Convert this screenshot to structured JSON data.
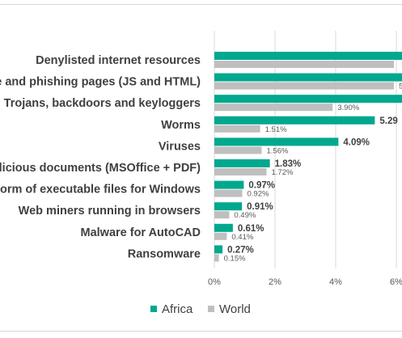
{
  "chart_data": {
    "type": "bar",
    "orientation": "horizontal",
    "categories": [
      "Denylisted internet resources",
      "Malware and phishing pages (JS and HTML)",
      "Trojans, backdoors and keyloggers",
      "Worms",
      "Viruses",
      "Malicious documents (MSOffice + PDF)",
      "Malware in the form of executable files for Windows",
      "Web miners running in browsers",
      "Malware for AutoCAD",
      "Ransomware"
    ],
    "series": [
      {
        "name": "Africa",
        "color": "#00a88e",
        "values": [
          null,
          null,
          null,
          5.29,
          4.09,
          1.83,
          0.97,
          0.91,
          0.61,
          0.27
        ],
        "labels": [
          "",
          "",
          "",
          "5.29",
          "4.09%",
          "1.83%",
          "0.97%",
          "0.91%",
          "0.61%",
          "0.27%"
        ]
      },
      {
        "name": "World",
        "color": "#bfbfbf",
        "values": [
          null,
          null,
          3.9,
          1.51,
          1.56,
          1.72,
          0.92,
          0.49,
          0.41,
          0.15
        ],
        "labels": [
          "",
          "5",
          "3.90%",
          "1.51%",
          "1.56%",
          "1.72%",
          "0.92%",
          "0.49%",
          "0.41%",
          "0.15%"
        ]
      }
    ],
    "x_ticks": [
      "0%",
      "2%",
      "4%",
      "6%"
    ],
    "xlim": [
      0,
      7
    ],
    "legend_position": "bottom",
    "grid": true
  }
}
